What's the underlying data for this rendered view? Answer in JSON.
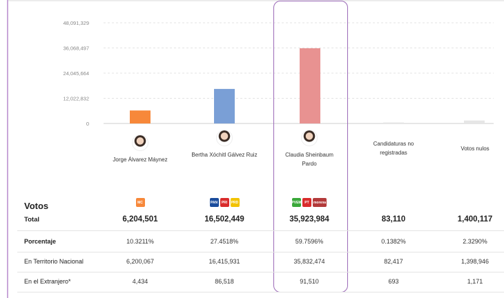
{
  "chart_data": {
    "type": "bar",
    "categories": [
      "Jorge Álvarez Máynez",
      "Bertha Xóchitl Gálvez Ruiz",
      "Claudia Sheinbaum Pardo",
      "Candidaturas no registradas",
      "Votos nulos"
    ],
    "values": [
      6204501,
      16502449,
      35923984,
      83110,
      1400117
    ],
    "colors": [
      "#f7883a",
      "#7a9fd6",
      "#e89291",
      "#e6e6e6",
      "#e6e6e6"
    ],
    "yticks": [
      "0",
      "12,022,832",
      "24,045,664",
      "36,068,497",
      "48,091,329"
    ],
    "ytick_values": [
      0,
      12022832,
      24045664,
      36068497,
      48091329
    ],
    "ylim": [
      0,
      48091329
    ],
    "grid": true
  },
  "candidates": [
    {
      "name": "Jorge Álvarez Máynez",
      "has_photo": true
    },
    {
      "name": "Bertha Xóchitl Gálvez Ruiz",
      "has_photo": true
    },
    {
      "name": "Claudia Sheinbaum Pardo",
      "has_photo": true
    },
    {
      "name": "Candidaturas no registradas",
      "has_photo": false
    },
    {
      "name": "Votos nulos",
      "has_photo": false
    }
  ],
  "party_logos": [
    [
      {
        "text": "MC",
        "color": "#f7883a"
      }
    ],
    [
      {
        "text": "PAN",
        "color": "#1a4c9c"
      },
      {
        "text": "PRI",
        "color": "#d92c2c"
      },
      {
        "text": "PRD",
        "color": "#f2c300"
      }
    ],
    [
      {
        "text": "PVEM",
        "color": "#3aa83a"
      },
      {
        "text": "PT",
        "color": "#d92c2c"
      },
      {
        "text": "morena",
        "color": "#b33a3a"
      }
    ]
  ],
  "table": {
    "votos_label": "Votos",
    "rows": [
      {
        "label": "Total",
        "values": [
          "6,204,501",
          "16,502,449",
          "35,923,984",
          "83,110",
          "1,400,117"
        ]
      },
      {
        "label": "Porcentaje",
        "values": [
          "10.3211%",
          "27.4518%",
          "59.7596%",
          "0.1382%",
          "2.3290%"
        ]
      },
      {
        "label": "En Territorio Nacional",
        "values": [
          "6,200,067",
          "16,415,931",
          "35,832,474",
          "82,417",
          "1,398,946"
        ]
      },
      {
        "label": "En el Extranjero*",
        "values": [
          "4,434",
          "86,518",
          "91,510",
          "693",
          "1,171"
        ]
      }
    ]
  }
}
